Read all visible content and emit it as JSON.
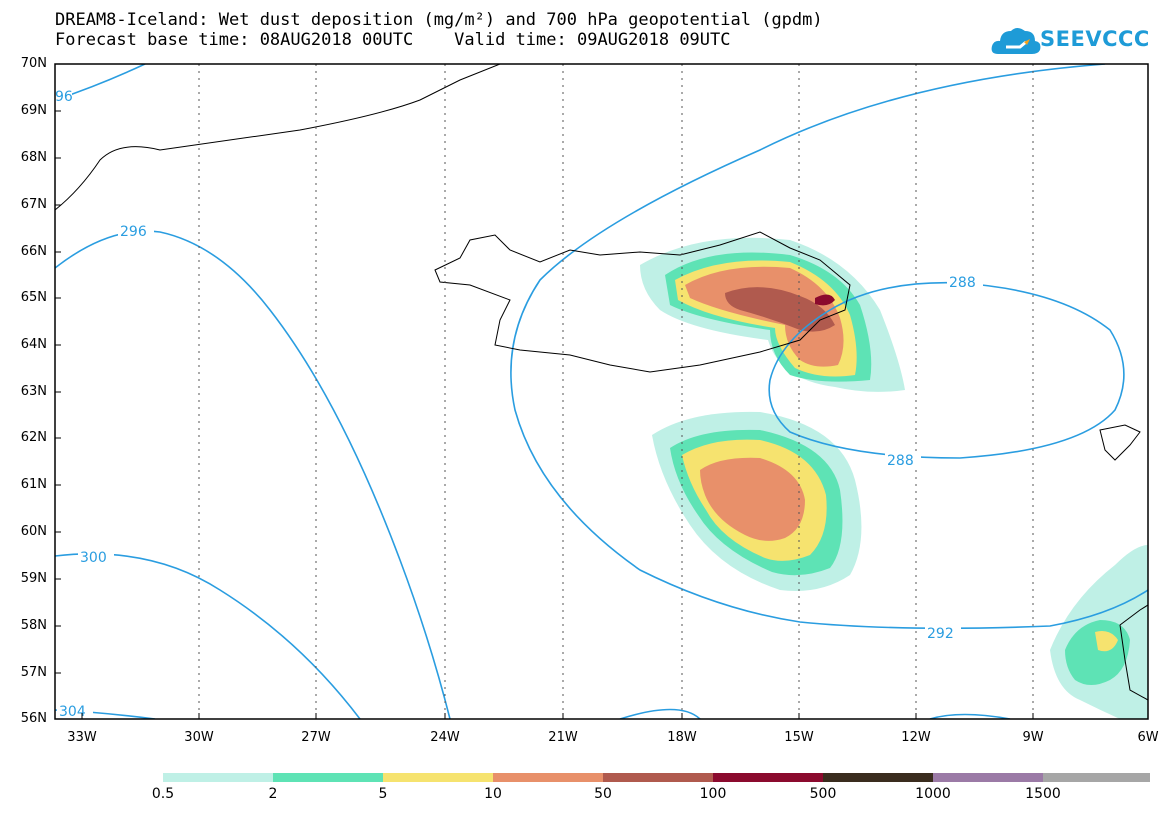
{
  "header": {
    "title_line1": "DREAM8-Iceland: Wet dust deposition (mg/m²) and 700 hPa geopotential (gpdm)",
    "title_line2": "Forecast base time: 08AUG2018 00UTC    Valid time: 09AUG2018 09UTC",
    "logo_text": "SEEVCCC",
    "logo_color": "#1e9bd7"
  },
  "map": {
    "lat_labels": [
      "70N",
      "69N",
      "68N",
      "67N",
      "66N",
      "65N",
      "64N",
      "63N",
      "62N",
      "61N",
      "60N",
      "59N",
      "58N",
      "57N",
      "56N"
    ],
    "lon_labels": [
      "33W",
      "30W",
      "27W",
      "24W",
      "21W",
      "18W",
      "15W",
      "12W",
      "9W",
      "6W"
    ],
    "lat_range": [
      56,
      70
    ],
    "lon_range": [
      -34.5,
      -6
    ],
    "contour_color": "#2a9de0",
    "contour_labels": [
      "96",
      "296",
      "300",
      "304",
      "288",
      "288",
      "292"
    ]
  },
  "colorbar": {
    "labels": [
      "0.5",
      "2",
      "5",
      "10",
      "50",
      "100",
      "500",
      "1000",
      "1500"
    ],
    "colors": [
      "#bff0e6",
      "#5ee3b5",
      "#f6e36f",
      "#e8906a",
      "#b05a4e",
      "#8b0a2e",
      "#3a2c1e",
      "#9b7aa6",
      "#a6a6a6"
    ]
  }
}
